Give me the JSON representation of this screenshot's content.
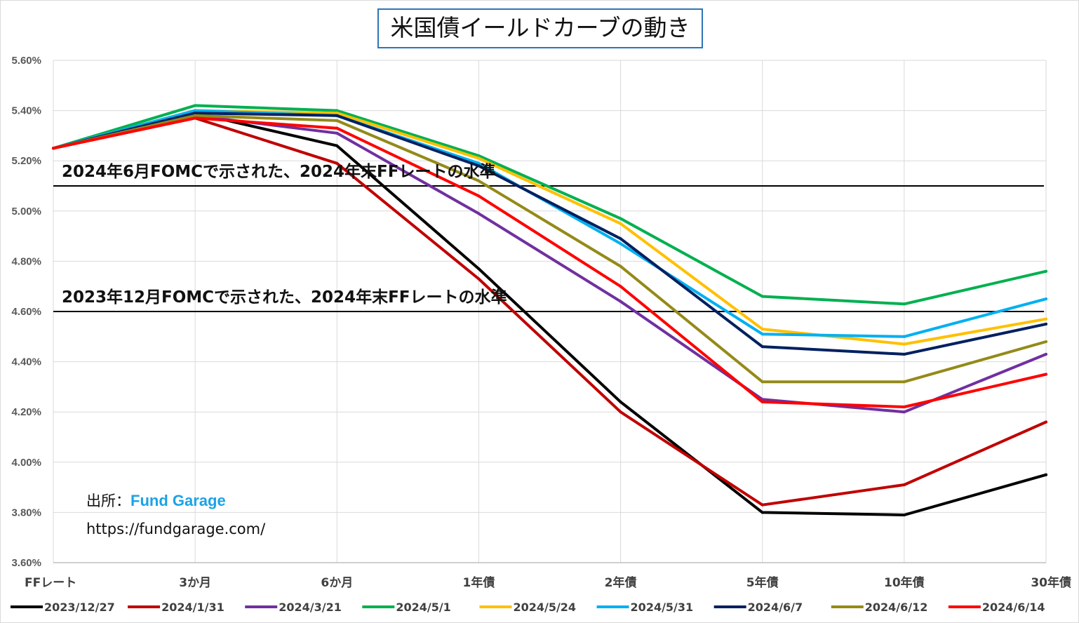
{
  "chart_data": {
    "type": "line",
    "title": "米国債イールドカーブの動き",
    "categories": [
      "FFレート",
      "3か月",
      "6か月",
      "1年債",
      "2年債",
      "5年債",
      "10年債",
      "30年債"
    ],
    "y_tick_labels": [
      "5.60%",
      "5.40%",
      "5.20%",
      "5.00%",
      "4.80%",
      "4.60%",
      "4.40%",
      "4.20%",
      "4.00%",
      "3.80%",
      "3.60%"
    ],
    "ylim": [
      3.6,
      5.6
    ],
    "grid": true,
    "legend_position": "bottom",
    "series": [
      {
        "name": "2023/12/27",
        "color": "#000000",
        "values": [
          5.25,
          5.39,
          5.26,
          4.77,
          4.24,
          3.8,
          3.79,
          3.95
        ]
      },
      {
        "name": "2024/1/31",
        "color": "#c00000",
        "values": [
          5.25,
          5.37,
          5.19,
          4.73,
          4.2,
          3.83,
          3.91,
          4.16
        ]
      },
      {
        "name": "2024/3/21",
        "color": "#7030a0",
        "values": [
          5.25,
          5.38,
          5.31,
          4.99,
          4.64,
          4.25,
          4.2,
          4.43
        ]
      },
      {
        "name": "2024/5/1",
        "color": "#00b050",
        "values": [
          5.25,
          5.42,
          5.4,
          5.22,
          4.97,
          4.66,
          4.63,
          4.76
        ]
      },
      {
        "name": "2024/5/24",
        "color": "#ffc000",
        "values": [
          5.25,
          5.4,
          5.39,
          5.21,
          4.95,
          4.53,
          4.47,
          4.57
        ]
      },
      {
        "name": "2024/5/31",
        "color": "#00b0f0",
        "values": [
          5.25,
          5.4,
          5.38,
          5.19,
          4.87,
          4.51,
          4.5,
          4.65
        ]
      },
      {
        "name": "2024/6/7",
        "color": "#002060",
        "values": [
          5.25,
          5.39,
          5.38,
          5.18,
          4.89,
          4.46,
          4.43,
          4.55
        ]
      },
      {
        "name": "2024/6/12",
        "color": "#948a18",
        "values": [
          5.25,
          5.38,
          5.36,
          5.12,
          4.78,
          4.32,
          4.32,
          4.48
        ]
      },
      {
        "name": "2024/6/14",
        "color": "#ff0000",
        "values": [
          5.25,
          5.37,
          5.33,
          5.06,
          4.7,
          4.24,
          4.22,
          4.35
        ]
      }
    ],
    "reference_lines": [
      {
        "value": 5.1,
        "label": "2024年6月FOMCで示された、2024年末FFレートの水準"
      },
      {
        "value": 4.6,
        "label": "2023年12月FOMCで示された、2024年末FFレートの水準"
      }
    ]
  },
  "source": {
    "label": "出所：",
    "name": "Fund Garage",
    "url": "https://fundgarage.com/"
  },
  "colors": {
    "gridline": "#d9d9d9",
    "axis": "#bfbfbf",
    "reference_line": "#000000",
    "title_border": "#2e75b6",
    "source_name": "#1aa3e6"
  }
}
